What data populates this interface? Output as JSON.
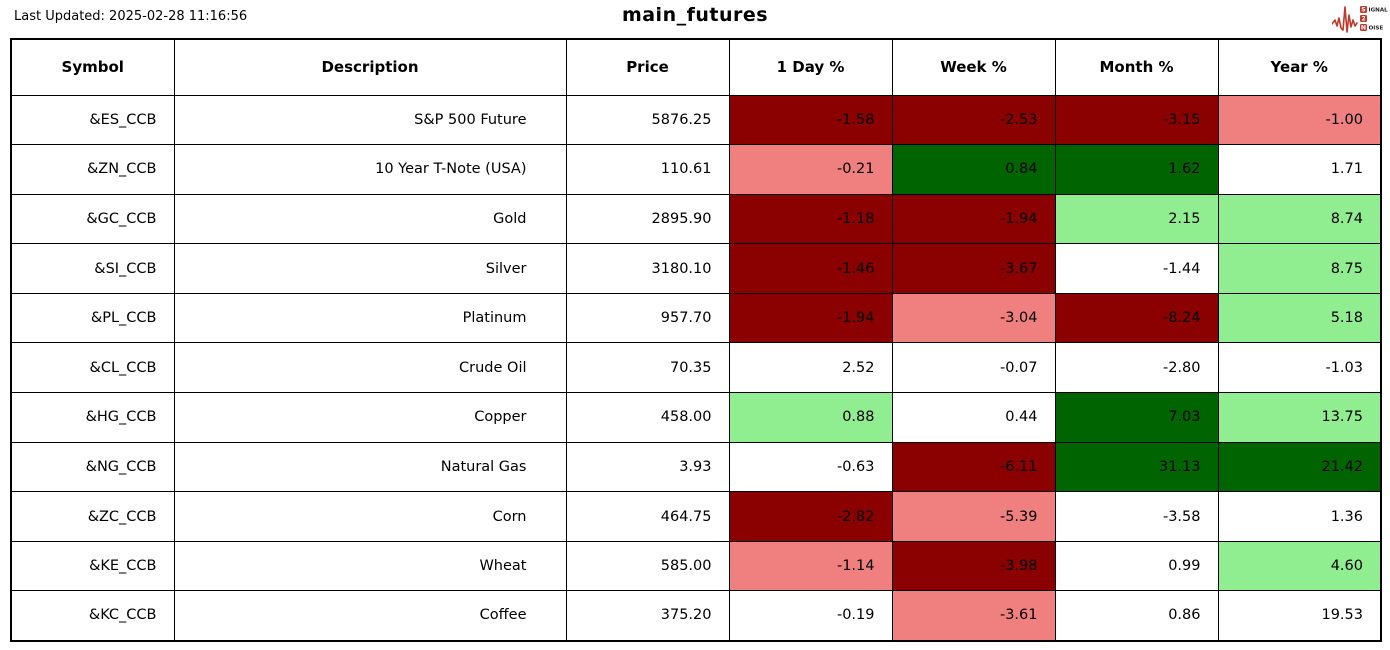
{
  "header": {
    "last_updated": "Last Updated: 2025-02-28 11:16:56",
    "title": "main_futures",
    "logo": {
      "name": "signal-2-noise",
      "line1_boxed": "S",
      "line1_rest": "IGNAL",
      "line2_boxed": "2",
      "line3_boxed": "N",
      "line3_rest": "OISE",
      "accent_color": "#c0392b"
    }
  },
  "colors": {
    "darkred": "#8b0000",
    "lightcoral": "#f08080",
    "darkgreen": "#006400",
    "lightgreen": "#90ee90",
    "white": "#ffffff"
  },
  "chart_data": {
    "type": "table",
    "title": "main_futures",
    "columns": [
      "Symbol",
      "Description",
      "Price",
      "1 Day %",
      "Week %",
      "Month %",
      "Year %"
    ],
    "rows": [
      {
        "symbol": "&ES_CCB",
        "description": "S&P 500 Future",
        "price": "5876.25",
        "values": [
          "-1.58",
          "-2.53",
          "-3.15",
          "-1.00"
        ],
        "value_colors": [
          "darkred",
          "darkred",
          "darkred",
          "lightcoral"
        ]
      },
      {
        "symbol": "&ZN_CCB",
        "description": "10 Year T-Note (USA)",
        "price": "110.61",
        "values": [
          "-0.21",
          "0.84",
          "1.62",
          "1.71"
        ],
        "value_colors": [
          "lightcoral",
          "darkgreen",
          "darkgreen",
          "white"
        ]
      },
      {
        "symbol": "&GC_CCB",
        "description": "Gold",
        "price": "2895.90",
        "values": [
          "-1.18",
          "-1.94",
          "2.15",
          "8.74"
        ],
        "value_colors": [
          "darkred",
          "darkred",
          "lightgreen",
          "lightgreen"
        ]
      },
      {
        "symbol": "&SI_CCB",
        "description": "Silver",
        "price": "3180.10",
        "values": [
          "-1.46",
          "-3.67",
          "-1.44",
          "8.75"
        ],
        "value_colors": [
          "darkred",
          "darkred",
          "white",
          "lightgreen"
        ]
      },
      {
        "symbol": "&PL_CCB",
        "description": "Platinum",
        "price": "957.70",
        "values": [
          "-1.94",
          "-3.04",
          "-8.24",
          "5.18"
        ],
        "value_colors": [
          "darkred",
          "lightcoral",
          "darkred",
          "lightgreen"
        ]
      },
      {
        "symbol": "&CL_CCB",
        "description": "Crude Oil",
        "price": "70.35",
        "values": [
          "2.52",
          "-0.07",
          "-2.80",
          "-1.03"
        ],
        "value_colors": [
          "white",
          "white",
          "white",
          "white"
        ]
      },
      {
        "symbol": "&HG_CCB",
        "description": "Copper",
        "price": "458.00",
        "values": [
          "0.88",
          "0.44",
          "7.03",
          "13.75"
        ],
        "value_colors": [
          "lightgreen",
          "white",
          "darkgreen",
          "lightgreen"
        ]
      },
      {
        "symbol": "&NG_CCB",
        "description": "Natural Gas",
        "price": "3.93",
        "values": [
          "-0.63",
          "-6.11",
          "31.13",
          "21.42"
        ],
        "value_colors": [
          "white",
          "darkred",
          "darkgreen",
          "darkgreen"
        ]
      },
      {
        "symbol": "&ZC_CCB",
        "description": "Corn",
        "price": "464.75",
        "values": [
          "-2.82",
          "-5.39",
          "-3.58",
          "1.36"
        ],
        "value_colors": [
          "darkred",
          "lightcoral",
          "white",
          "white"
        ]
      },
      {
        "symbol": "&KE_CCB",
        "description": "Wheat",
        "price": "585.00",
        "values": [
          "-1.14",
          "-3.98",
          "0.99",
          "4.60"
        ],
        "value_colors": [
          "lightcoral",
          "darkred",
          "white",
          "lightgreen"
        ]
      },
      {
        "symbol": "&KC_CCB",
        "description": "Coffee",
        "price": "375.20",
        "values": [
          "-0.19",
          "-3.61",
          "0.86",
          "19.53"
        ],
        "value_colors": [
          "white",
          "lightcoral",
          "white",
          "white"
        ]
      }
    ]
  }
}
